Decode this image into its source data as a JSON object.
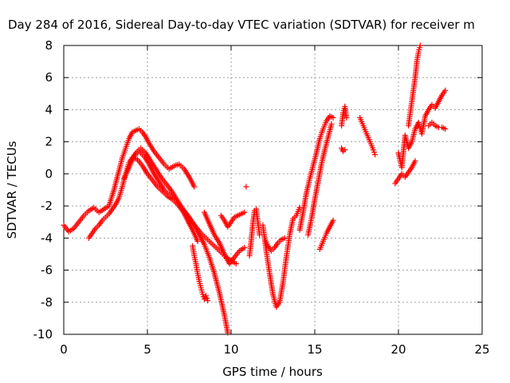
{
  "chart_data": {
    "type": "scatter",
    "title": "Day 284 of 2016, Sidereal Day-to-day VTEC variation (SDTVAR) for receiver m",
    "xlabel": "GPS time / hours",
    "ylabel": "SDTVAR / TECUs",
    "xlim": [
      0,
      25
    ],
    "ylim": [
      -10,
      8
    ],
    "xticks": [
      0,
      5,
      10,
      15,
      20,
      25
    ],
    "yticks": [
      -10,
      -8,
      -6,
      -4,
      -2,
      0,
      2,
      4,
      6,
      8
    ],
    "grid": true,
    "marker": "+",
    "color": "#ff0000",
    "series": [
      {
        "x": [
          0.0,
          0.3,
          0.6,
          0.9,
          1.2,
          1.5,
          1.8,
          2.1,
          2.4,
          2.7,
          3.0,
          3.3,
          3.5,
          3.7,
          3.9,
          4.1,
          4.3,
          4.5,
          4.7,
          4.9,
          5.1,
          5.4,
          5.7,
          6.0,
          6.3,
          6.6,
          6.9,
          7.2,
          7.5,
          7.8
        ],
        "y": [
          -3.2,
          -3.6,
          -3.4,
          -3.0,
          -2.6,
          -2.3,
          -2.1,
          -2.4,
          -2.2,
          -2.0,
          -1.0,
          0.2,
          1.0,
          1.6,
          2.2,
          2.6,
          2.7,
          2.8,
          2.6,
          2.3,
          1.9,
          1.4,
          1.0,
          0.6,
          0.3,
          0.5,
          0.6,
          0.3,
          -0.2,
          -0.8
        ]
      },
      {
        "x": [
          1.5,
          1.7,
          1.9,
          2.1,
          2.3,
          2.5,
          2.7,
          2.9,
          3.1,
          3.3,
          3.5,
          3.7,
          3.9,
          4.1,
          4.4,
          4.7,
          5.0,
          5.3,
          5.6,
          5.9,
          6.2,
          6.5,
          6.8,
          7.1,
          7.4,
          7.7,
          8.0
        ],
        "y": [
          -4.0,
          -3.7,
          -3.4,
          -3.2,
          -2.9,
          -2.7,
          -2.5,
          -2.2,
          -1.9,
          -1.5,
          -0.8,
          0.0,
          0.7,
          1.0,
          0.9,
          0.5,
          0.0,
          -0.4,
          -0.8,
          -1.1,
          -1.4,
          -1.6,
          -1.9,
          -2.3,
          -2.9,
          -3.5,
          -4.2
        ]
      },
      {
        "x": [
          3.6,
          3.9,
          4.2,
          4.5,
          4.8,
          5.1,
          5.4,
          5.7,
          6.0,
          6.3,
          6.6,
          6.9,
          7.2,
          7.5,
          7.8,
          8.1,
          8.4,
          8.7,
          9.0,
          9.3,
          9.6,
          9.8
        ],
        "y": [
          -0.3,
          0.4,
          1.1,
          1.4,
          1.1,
          0.6,
          0.0,
          -0.5,
          -1.0,
          -1.3,
          -1.6,
          -1.9,
          -2.3,
          -2.7,
          -3.2,
          -3.8,
          -4.4,
          -5.2,
          -6.2,
          -7.4,
          -8.8,
          -9.9
        ]
      },
      {
        "x": [
          4.0,
          4.3,
          4.6,
          4.9,
          5.2,
          5.5,
          5.8,
          6.1,
          6.4,
          6.7,
          7.0,
          7.3,
          7.6,
          7.9,
          8.2,
          8.5,
          8.8,
          9.1,
          9.4,
          9.7,
          10.0,
          10.3
        ],
        "y": [
          0.8,
          1.3,
          1.6,
          1.3,
          0.8,
          0.3,
          -0.2,
          -0.6,
          -1.0,
          -1.5,
          -2.0,
          -2.5,
          -2.9,
          -3.3,
          -3.7,
          -4.0,
          -4.3,
          -4.6,
          -4.9,
          -5.2,
          -5.4,
          -5.6
        ]
      },
      {
        "x": [
          7.7,
          7.8,
          7.9,
          8.0,
          8.1,
          8.2,
          8.3,
          8.4,
          8.5,
          8.6
        ],
        "y": [
          -4.5,
          -5.1,
          -5.6,
          -6.2,
          -6.7,
          -7.1,
          -7.5,
          -7.8,
          -7.6,
          -7.9
        ]
      },
      {
        "x": [
          8.4,
          8.7,
          9.0,
          9.3,
          9.6,
          9.9,
          10.2,
          10.5,
          10.8
        ],
        "y": [
          -2.4,
          -3.1,
          -3.8,
          -4.3,
          -5.0,
          -5.6,
          -5.2,
          -4.8,
          -4.6
        ]
      },
      {
        "x": [
          9.4,
          9.6,
          9.8,
          10.0,
          10.2,
          10.4,
          10.6,
          10.8
        ],
        "y": [
          -2.6,
          -2.9,
          -3.3,
          -3.0,
          -2.7,
          -2.6,
          -2.5,
          -2.4
        ]
      },
      {
        "x": [
          10.9
        ],
        "y": [
          -0.8
        ]
      },
      {
        "x": [
          11.1,
          11.2,
          11.3,
          11.4,
          11.5,
          11.6,
          11.7
        ],
        "y": [
          -5.1,
          -4.2,
          -3.1,
          -2.3,
          -2.2,
          -3.0,
          -3.8
        ]
      },
      {
        "x": [
          11.9,
          12.1,
          12.3,
          12.5,
          12.7,
          12.9,
          13.1,
          13.3,
          13.5,
          13.7,
          13.9,
          14.1
        ],
        "y": [
          -3.2,
          -4.8,
          -6.2,
          -7.5,
          -8.3,
          -8.0,
          -6.8,
          -5.2,
          -3.8,
          -2.8,
          -2.6,
          -2.1
        ]
      },
      {
        "x": [
          12.0,
          12.2,
          12.4,
          12.6,
          12.8,
          13.0,
          13.2
        ],
        "y": [
          -4.0,
          -4.5,
          -4.8,
          -4.6,
          -4.3,
          -4.1,
          -4.0
        ]
      },
      {
        "x": [
          14.1,
          14.3,
          14.5,
          14.7,
          14.9,
          15.1,
          15.3,
          15.5,
          15.7,
          15.9,
          16.1
        ],
        "y": [
          -3.5,
          -2.4,
          -1.2,
          -0.3,
          0.5,
          1.3,
          2.2,
          2.8,
          3.3,
          3.6,
          3.5
        ]
      },
      {
        "x": [
          14.6,
          14.8,
          15.0,
          15.2,
          15.4,
          15.6,
          15.8,
          16.0
        ],
        "y": [
          -3.8,
          -2.8,
          -1.6,
          -0.5,
          0.6,
          1.5,
          2.3,
          3.1
        ]
      },
      {
        "x": [
          15.3,
          15.5,
          15.7,
          15.9,
          16.1
        ],
        "y": [
          -4.7,
          -4.2,
          -3.7,
          -3.3,
          -2.9
        ]
      },
      {
        "x": [
          16.6,
          16.7,
          16.8,
          16.9
        ],
        "y": [
          3.0,
          3.8,
          4.2,
          3.5
        ]
      },
      {
        "x": [
          16.6,
          16.7,
          16.8
        ],
        "y": [
          1.6,
          1.4,
          1.5
        ]
      },
      {
        "x": [
          17.7,
          17.9,
          18.1,
          18.3,
          18.5,
          18.6
        ],
        "y": [
          3.5,
          3.0,
          2.5,
          2.0,
          1.5,
          1.2
        ]
      },
      {
        "x": [
          19.8,
          20.0,
          20.2,
          20.4,
          20.6,
          20.8,
          21.0
        ],
        "y": [
          -0.6,
          -0.3,
          0.0,
          -0.2,
          0.1,
          0.4,
          0.8
        ]
      },
      {
        "x": [
          20.0,
          20.2,
          20.4,
          20.6,
          20.8,
          21.0,
          21.2,
          21.4,
          21.6,
          21.8,
          22.0,
          22.2,
          22.4,
          22.6,
          22.8
        ],
        "y": [
          1.3,
          0.4,
          2.4,
          1.6,
          2.0,
          2.8,
          3.2,
          2.5,
          3.6,
          4.0,
          4.3,
          4.1,
          4.5,
          4.9,
          5.2
        ]
      },
      {
        "x": [
          20.6,
          20.8,
          21.0,
          21.1,
          21.2,
          21.3
        ],
        "y": [
          3.0,
          4.5,
          6.0,
          7.0,
          7.6,
          8.0
        ]
      },
      {
        "x": [
          21.8,
          22.0,
          22.2,
          22.4,
          22.6,
          22.8
        ],
        "y": [
          3.0,
          3.2,
          3.0,
          2.9,
          2.9,
          2.8
        ]
      }
    ]
  }
}
